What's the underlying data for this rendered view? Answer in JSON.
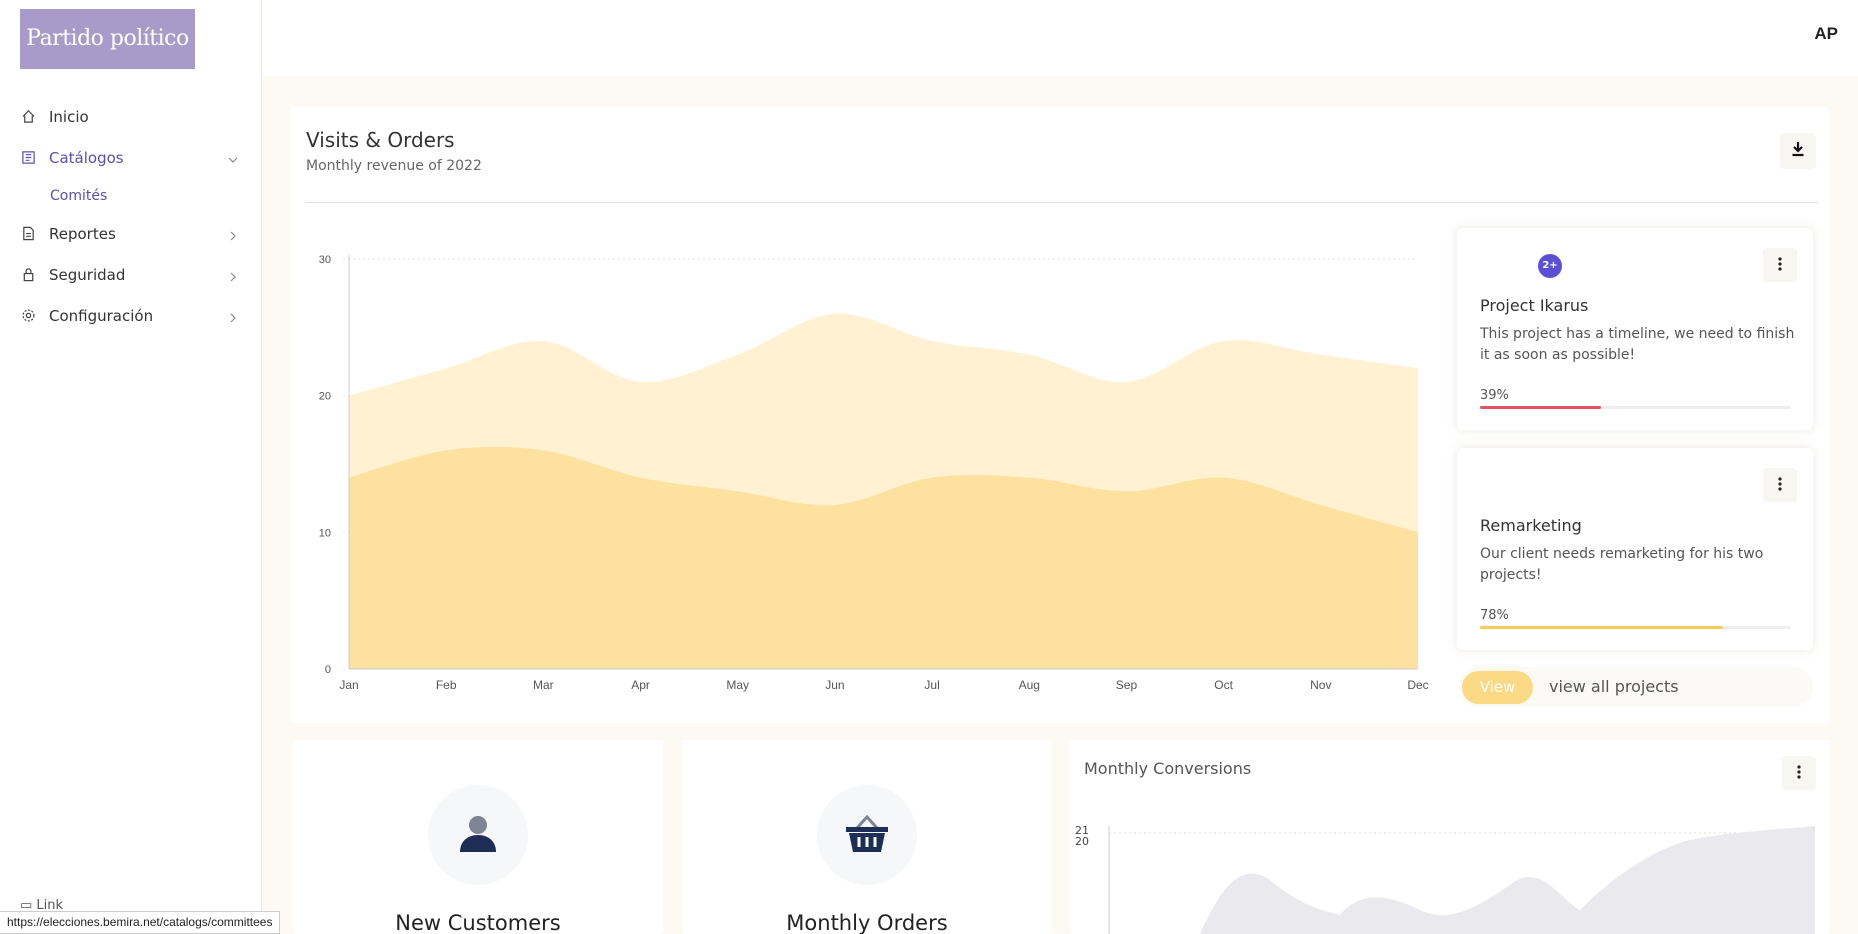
{
  "brand": {
    "logo_text": "Partido político"
  },
  "user": {
    "initials": "AP"
  },
  "sidebar": {
    "items": [
      {
        "label": "Inicio",
        "icon": "home-icon"
      },
      {
        "label": "Catálogos",
        "icon": "catalog-icon",
        "expanded": true,
        "children": [
          {
            "label": "Comités"
          }
        ]
      },
      {
        "label": "Reportes",
        "icon": "document-icon"
      },
      {
        "label": "Seguridad",
        "icon": "lock-icon"
      },
      {
        "label": "Configuración",
        "icon": "gear-icon"
      }
    ],
    "bottom_link": "Link"
  },
  "status_bar": {
    "url": "https://elecciones.bemira.net/catalogs/committees"
  },
  "visits_card": {
    "title": "Visits & Orders",
    "subtitle": "Monthly revenue of 2022",
    "download_icon": "download-icon"
  },
  "chart_data": {
    "type": "area",
    "categories": [
      "Jan",
      "Feb",
      "Mar",
      "Apr",
      "May",
      "Jun",
      "Jul",
      "Aug",
      "Sep",
      "Oct",
      "Nov",
      "Dec"
    ],
    "series": [
      {
        "values": [
          20,
          22,
          24,
          21,
          23,
          26,
          24,
          23,
          21,
          24,
          23,
          22
        ],
        "color": "#fff1d2"
      },
      {
        "values": [
          14,
          16,
          16,
          14,
          13,
          12,
          14,
          14,
          13,
          14,
          12,
          10
        ],
        "color": "#fde19f"
      }
    ],
    "yticks": [
      0,
      10,
      20,
      30
    ],
    "ylim": [
      0,
      30
    ],
    "grid": true
  },
  "projects": [
    {
      "badge": "2+",
      "title": "Project Ikarus",
      "description": "This project has a timeline, we need to finish it as soon as possible!",
      "progress_label": "39%",
      "progress": 0.39,
      "bar_color": "#e05561"
    },
    {
      "title": "Remarketing",
      "description": "Our client needs remarketing for his two projects!",
      "progress_label": "78%",
      "progress": 0.78,
      "bar_color": "#f7cc5a"
    }
  ],
  "projects_footer": {
    "view_label": "View",
    "view_all_label": "view all projects"
  },
  "stats": [
    {
      "label": "New Customers",
      "icon": "user-icon"
    },
    {
      "label": "Monthly Orders",
      "icon": "basket-icon"
    }
  ],
  "conversions": {
    "title": "Monthly Conversions",
    "yticks_visible": [
      "21",
      "20"
    ]
  }
}
